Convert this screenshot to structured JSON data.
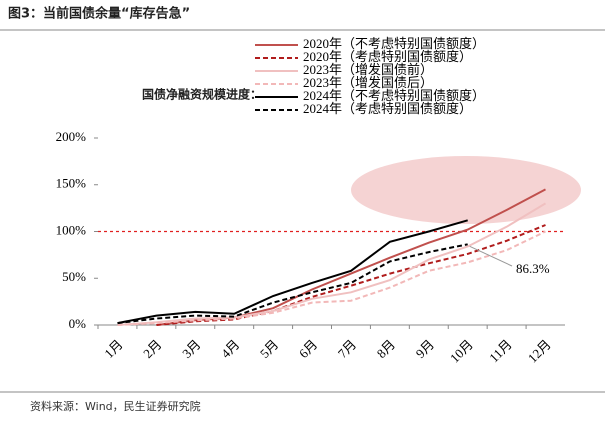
{
  "chart_data": {
    "type": "line",
    "title": "图3：当前国债余量“库存告急”",
    "subtitle": "国债净融资规模进度：",
    "source": "资料来源：Wind，民生证券研究院",
    "categories": [
      "1月",
      "2月",
      "3月",
      "4月",
      "5月",
      "6月",
      "7月",
      "8月",
      "9月",
      "10月",
      "11月",
      "12月"
    ],
    "ylim": [
      0,
      200
    ],
    "yticks": [
      {
        "value": 0,
        "label": "0%"
      },
      {
        "value": 50,
        "label": "50%"
      },
      {
        "value": 100,
        "label": "100%"
      },
      {
        "value": 150,
        "label": "150%"
      },
      {
        "value": 200,
        "label": "200%"
      }
    ],
    "reference_line": 100,
    "annotation": "86.3%",
    "series": [
      {
        "name": "2020年（不考虑特别国债额度）",
        "color": "#c0504d",
        "dash": false,
        "values": [
          null,
          0,
          5,
          8,
          18,
          38,
          55,
          72,
          88,
          102,
          123,
          145
        ]
      },
      {
        "name": "2020年（考虑特别国债额度）",
        "color": "#b01c1c",
        "dash": true,
        "values": [
          null,
          0,
          4,
          6,
          15,
          30,
          42,
          55,
          66,
          76,
          90,
          107
        ]
      },
      {
        "name": "2023年（增发国债前）",
        "color": "#f0c0c0",
        "dash": false,
        "values": [
          0,
          3,
          7,
          8,
          15,
          28,
          35,
          48,
          70,
          84,
          105,
          130
        ]
      },
      {
        "name": "2023年（增发国债后）",
        "color": "#f2b8b8",
        "dash": true,
        "values": [
          0,
          2,
          5,
          7,
          13,
          24,
          26,
          40,
          58,
          67,
          80,
          100
        ]
      },
      {
        "name": "2024年（不考虑特别国债额度）",
        "color": "#000000",
        "dash": false,
        "values": [
          2,
          10,
          14,
          12,
          31,
          45,
          58,
          89,
          100,
          112,
          null,
          null
        ]
      },
      {
        "name": "2024年（考虑特别国债额度）",
        "color": "#000000",
        "dash": true,
        "values": [
          2,
          7,
          10,
          9,
          24,
          35,
          45,
          68,
          78,
          86.3,
          null,
          null
        ]
      }
    ]
  }
}
